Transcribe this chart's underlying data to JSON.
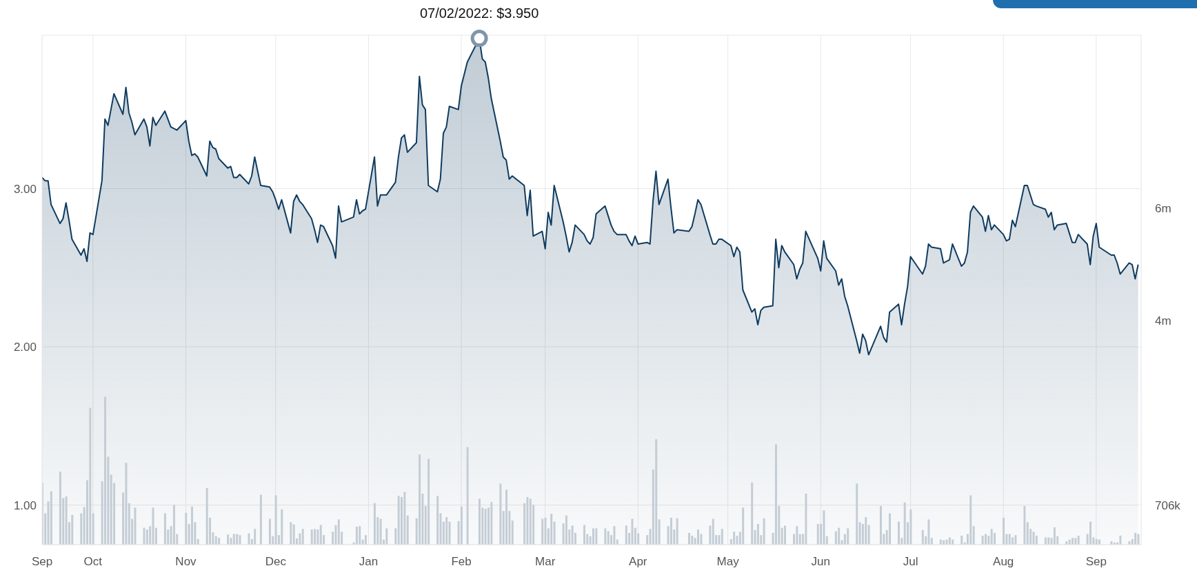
{
  "chart_data": {
    "type": "area",
    "x": [
      "2021-09-14",
      "2021-09-15",
      "2021-09-16",
      "2021-09-17",
      "2021-09-20",
      "2021-09-21",
      "2021-09-22",
      "2021-09-23",
      "2021-09-24",
      "2021-09-27",
      "2021-09-28",
      "2021-09-29",
      "2021-09-30",
      "2021-10-01",
      "2021-10-04",
      "2021-10-05",
      "2021-10-06",
      "2021-10-07",
      "2021-10-08",
      "2021-10-11",
      "2021-10-12",
      "2021-10-13",
      "2021-10-14",
      "2021-10-15",
      "2021-10-18",
      "2021-10-19",
      "2021-10-20",
      "2021-10-21",
      "2021-10-22",
      "2021-10-25",
      "2021-10-26",
      "2021-10-27",
      "2021-10-28",
      "2021-10-29",
      "2021-11-01",
      "2021-11-02",
      "2021-11-03",
      "2021-11-04",
      "2021-11-05",
      "2021-11-08",
      "2021-11-09",
      "2021-11-10",
      "2021-11-11",
      "2021-11-12",
      "2021-11-15",
      "2021-11-16",
      "2021-11-17",
      "2021-11-18",
      "2021-11-19",
      "2021-11-22",
      "2021-11-23",
      "2021-11-24",
      "2021-11-26",
      "2021-11-29",
      "2021-11-30",
      "2021-12-01",
      "2021-12-02",
      "2021-12-03",
      "2021-12-06",
      "2021-12-07",
      "2021-12-08",
      "2021-12-09",
      "2021-12-10",
      "2021-12-13",
      "2021-12-14",
      "2021-12-15",
      "2021-12-16",
      "2021-12-17",
      "2021-12-20",
      "2021-12-21",
      "2021-12-22",
      "2021-12-23",
      "2021-12-27",
      "2021-12-28",
      "2021-12-29",
      "2021-12-30",
      "2021-12-31",
      "2022-01-03",
      "2022-01-04",
      "2022-01-05",
      "2022-01-06",
      "2022-01-07",
      "2022-01-10",
      "2022-01-11",
      "2022-01-12",
      "2022-01-13",
      "2022-01-14",
      "2022-01-17",
      "2022-01-18",
      "2022-01-19",
      "2022-01-20",
      "2022-01-21",
      "2022-01-24",
      "2022-01-25",
      "2022-01-26",
      "2022-01-27",
      "2022-01-28",
      "2022-01-31",
      "2022-02-01",
      "2022-02-03",
      "2022-02-07",
      "2022-02-08",
      "2022-02-09",
      "2022-02-10",
      "2022-02-11",
      "2022-02-14",
      "2022-02-15",
      "2022-02-16",
      "2022-02-17",
      "2022-02-18",
      "2022-02-22",
      "2022-02-23",
      "2022-02-24",
      "2022-02-25",
      "2022-02-28",
      "2022-03-01",
      "2022-03-02",
      "2022-03-03",
      "2022-03-04",
      "2022-03-07",
      "2022-03-08",
      "2022-03-09",
      "2022-03-10",
      "2022-03-11",
      "2022-03-14",
      "2022-03-15",
      "2022-03-16",
      "2022-03-17",
      "2022-03-18",
      "2022-03-21",
      "2022-03-22",
      "2022-03-23",
      "2022-03-24",
      "2022-03-25",
      "2022-03-28",
      "2022-03-29",
      "2022-03-30",
      "2022-03-31",
      "2022-04-01",
      "2022-04-04",
      "2022-04-05",
      "2022-04-06",
      "2022-04-07",
      "2022-04-08",
      "2022-04-11",
      "2022-04-12",
      "2022-04-13",
      "2022-04-14",
      "2022-04-18",
      "2022-04-19",
      "2022-04-20",
      "2022-04-21",
      "2022-04-22",
      "2022-04-25",
      "2022-04-26",
      "2022-04-27",
      "2022-04-28",
      "2022-04-29",
      "2022-05-02",
      "2022-05-03",
      "2022-05-04",
      "2022-05-05",
      "2022-05-06",
      "2022-05-09",
      "2022-05-10",
      "2022-05-11",
      "2022-05-12",
      "2022-05-13",
      "2022-05-16",
      "2022-05-17",
      "2022-05-18",
      "2022-05-19",
      "2022-05-20",
      "2022-05-23",
      "2022-05-24",
      "2022-05-25",
      "2022-05-26",
      "2022-05-27",
      "2022-05-31",
      "2022-06-01",
      "2022-06-02",
      "2022-06-03",
      "2022-06-06",
      "2022-06-07",
      "2022-06-08",
      "2022-06-09",
      "2022-06-10",
      "2022-06-13",
      "2022-06-14",
      "2022-06-15",
      "2022-06-16",
      "2022-06-17",
      "2022-06-21",
      "2022-06-22",
      "2022-06-23",
      "2022-06-24",
      "2022-06-27",
      "2022-06-28",
      "2022-06-29",
      "2022-06-30",
      "2022-07-01",
      "2022-07-05",
      "2022-07-06",
      "2022-07-07",
      "2022-07-08",
      "2022-07-11",
      "2022-07-12",
      "2022-07-13",
      "2022-07-14",
      "2022-07-15",
      "2022-07-18",
      "2022-07-19",
      "2022-07-20",
      "2022-07-21",
      "2022-07-22",
      "2022-07-25",
      "2022-07-26",
      "2022-07-27",
      "2022-07-28",
      "2022-07-29",
      "2022-08-01",
      "2022-08-02",
      "2022-08-03",
      "2022-08-04",
      "2022-08-05",
      "2022-08-08",
      "2022-08-09",
      "2022-08-10",
      "2022-08-11",
      "2022-08-12",
      "2022-08-15",
      "2022-08-16",
      "2022-08-17",
      "2022-08-18",
      "2022-08-19",
      "2022-08-22",
      "2022-08-23",
      "2022-08-24",
      "2022-08-25",
      "2022-08-26",
      "2022-08-29",
      "2022-08-30",
      "2022-08-31",
      "2022-09-01",
      "2022-09-02",
      "2022-09-06",
      "2022-09-07",
      "2022-09-08",
      "2022-09-09",
      "2022-09-12",
      "2022-09-13",
      "2022-09-14",
      "2022-09-15"
    ],
    "series": [
      {
        "color": "#0f3b5f",
        "values": [
          3.07,
          3.05,
          3.05,
          2.9,
          2.78,
          2.81,
          2.91,
          2.8,
          2.68,
          2.58,
          2.62,
          2.54,
          2.72,
          2.71,
          3.05,
          3.44,
          3.4,
          3.5,
          3.6,
          3.47,
          3.64,
          3.48,
          3.42,
          3.34,
          3.44,
          3.39,
          3.27,
          3.45,
          3.4,
          3.49,
          3.44,
          3.39,
          3.38,
          3.37,
          3.43,
          3.3,
          3.21,
          3.22,
          3.2,
          3.08,
          3.3,
          3.26,
          3.25,
          3.19,
          3.13,
          3.14,
          3.07,
          3.07,
          3.09,
          3.03,
          3.08,
          3.2,
          3.02,
          3.01,
          2.98,
          2.93,
          2.87,
          2.93,
          2.72,
          2.92,
          2.96,
          2.92,
          2.9,
          2.81,
          2.74,
          2.66,
          2.77,
          2.76,
          2.64,
          2.56,
          2.89,
          2.79,
          2.82,
          2.93,
          2.84,
          2.86,
          2.87,
          3.2,
          2.89,
          2.96,
          2.96,
          2.96,
          3.04,
          3.2,
          3.32,
          3.34,
          3.23,
          3.29,
          3.71,
          3.53,
          3.5,
          3.02,
          2.98,
          3.06,
          3.35,
          3.39,
          3.52,
          3.5,
          3.65,
          3.8,
          3.95,
          3.82,
          3.8,
          3.7,
          3.57,
          3.3,
          3.2,
          3.18,
          3.06,
          3.08,
          3.02,
          2.83,
          2.99,
          2.7,
          2.73,
          2.62,
          2.85,
          2.77,
          3.02,
          2.79,
          2.7,
          2.6,
          2.66,
          2.77,
          2.71,
          2.67,
          2.65,
          2.69,
          2.84,
          2.89,
          2.83,
          2.77,
          2.73,
          2.71,
          2.71,
          2.67,
          2.64,
          2.7,
          2.65,
          2.66,
          2.65,
          2.92,
          3.11,
          2.9,
          3.06,
          2.88,
          2.72,
          2.74,
          2.73,
          2.76,
          2.84,
          2.93,
          2.9,
          2.71,
          2.65,
          2.65,
          2.68,
          2.68,
          2.64,
          2.57,
          2.63,
          2.6,
          2.36,
          2.22,
          2.24,
          2.14,
          2.23,
          2.25,
          2.26,
          2.68,
          2.5,
          2.64,
          2.6,
          2.52,
          2.43,
          2.49,
          2.53,
          2.73,
          2.56,
          2.48,
          2.67,
          2.56,
          2.48,
          2.39,
          2.43,
          2.32,
          2.26,
          2.04,
          1.96,
          2.08,
          2.04,
          1.95,
          2.13,
          2.06,
          2.03,
          2.22,
          2.27,
          2.14,
          2.27,
          2.38,
          2.57,
          2.46,
          2.51,
          2.65,
          2.63,
          2.62,
          2.53,
          2.54,
          2.55,
          2.65,
          2.51,
          2.53,
          2.6,
          2.85,
          2.89,
          2.82,
          2.73,
          2.83,
          2.74,
          2.77,
          2.71,
          2.67,
          2.68,
          2.8,
          2.76,
          3.02,
          3.02,
          2.96,
          2.9,
          2.89,
          2.87,
          2.82,
          2.85,
          2.74,
          2.77,
          2.78,
          2.72,
          2.66,
          2.66,
          2.71,
          2.65,
          2.52,
          2.7,
          2.78,
          2.63,
          2.58,
          2.58,
          2.53,
          2.46,
          2.53,
          2.52,
          2.43,
          2.52
        ]
      },
      {
        "type": "bar",
        "axis": "y2",
        "color": "#c4cdd5",
        "values": [
          1100000,
          560000,
          770000,
          950000,
          1300000,
          830000,
          860000,
          400000,
          530000,
          560000,
          670000,
          1150000,
          2440000,
          560000,
          1130000,
          2640000,
          1570000,
          1250000,
          1100000,
          930000,
          1460000,
          740000,
          460000,
          660000,
          300000,
          270000,
          330000,
          660000,
          300000,
          560000,
          270000,
          330000,
          710000,
          190000,
          570000,
          370000,
          680000,
          400000,
          100000,
          1010000,
          480000,
          220000,
          150000,
          120000,
          180000,
          120000,
          190000,
          190000,
          170000,
          200000,
          100000,
          280000,
          890000,
          460000,
          150000,
          880000,
          170000,
          630000,
          400000,
          360000,
          110000,
          200000,
          280000,
          270000,
          280000,
          270000,
          350000,
          170000,
          230000,
          350000,
          450000,
          230000,
          40000,
          320000,
          330000,
          90000,
          170000,
          740000,
          490000,
          460000,
          90000,
          290000,
          290000,
          870000,
          850000,
          940000,
          520000,
          470000,
          1610000,
          910000,
          690000,
          1530000,
          870000,
          560000,
          410000,
          490000,
          410000,
          420000,
          680000,
          1740000,
          820000,
          660000,
          640000,
          660000,
          760000,
          1090000,
          600000,
          980000,
          600000,
          430000,
          740000,
          850000,
          820000,
          710000,
          460000,
          480000,
          290000,
          550000,
          410000,
          380000,
          520000,
          270000,
          340000,
          210000,
          350000,
          190000,
          150000,
          290000,
          290000,
          290000,
          240000,
          170000,
          330000,
          90000,
          340000,
          210000,
          460000,
          300000,
          200000,
          170000,
          280000,
          1340000,
          1880000,
          450000,
          330000,
          480000,
          270000,
          470000,
          210000,
          160000,
          120000,
          270000,
          190000,
          340000,
          460000,
          170000,
          170000,
          280000,
          100000,
          230000,
          160000,
          230000,
          660000,
          1110000,
          260000,
          370000,
          170000,
          470000,
          210000,
          1790000,
          690000,
          300000,
          340000,
          190000,
          330000,
          190000,
          190000,
          910000,
          370000,
          370000,
          610000,
          150000,
          240000,
          300000,
          80000,
          190000,
          290000,
          1090000,
          400000,
          370000,
          490000,
          350000,
          690000,
          190000,
          260000,
          560000,
          410000,
          120000,
          750000,
          400000,
          630000,
          260000,
          150000,
          450000,
          120000,
          90000,
          80000,
          90000,
          130000,
          90000,
          160000,
          40000,
          190000,
          880000,
          330000,
          160000,
          190000,
          160000,
          280000,
          210000,
          480000,
          190000,
          190000,
          130000,
          170000,
          690000,
          400000,
          280000,
          230000,
          160000,
          130000,
          130000,
          120000,
          310000,
          150000,
          60000,
          90000,
          120000,
          120000,
          160000,
          190000,
          410000,
          130000,
          100000,
          90000,
          60000,
          40000,
          40000,
          160000,
          60000,
          100000,
          210000,
          190000
        ]
      }
    ],
    "xlim": [
      "2021-09-14",
      "2022-09-16"
    ],
    "xticks": [
      {
        "value": "2021-09-14",
        "label": "Sep"
      },
      {
        "value": "2021-10-01",
        "label": "Oct"
      },
      {
        "value": "2021-11-01",
        "label": "Nov"
      },
      {
        "value": "2021-12-01",
        "label": "Dec"
      },
      {
        "value": "2022-01-01",
        "label": "Jan"
      },
      {
        "value": "2022-02-01",
        "label": "Feb"
      },
      {
        "value": "2022-03-01",
        "label": "Mar"
      },
      {
        "value": "2022-04-01",
        "label": "Apr"
      },
      {
        "value": "2022-05-01",
        "label": "May"
      },
      {
        "value": "2022-06-01",
        "label": "Jun"
      },
      {
        "value": "2022-07-01",
        "label": "Jul"
      },
      {
        "value": "2022-08-01",
        "label": "Aug"
      },
      {
        "value": "2022-09-01",
        "label": "Sep"
      }
    ],
    "ylim": [
      0.75,
      3.97
    ],
    "yticks": [
      {
        "value": 1,
        "label": "1.00"
      },
      {
        "value": 2,
        "label": "2.00"
      },
      {
        "value": 3,
        "label": "3.00"
      }
    ],
    "y2lim": [
      0,
      9090000
    ],
    "y2ticks": [
      {
        "value": 706000,
        "label": "706k"
      },
      {
        "value": 4000000,
        "label": "4m"
      },
      {
        "value": 6000000,
        "label": "6m"
      }
    ],
    "grid": true,
    "annotations": [
      {
        "text": "07/02/2022: $3.950",
        "x": "2022-02-07",
        "y": 3.95
      }
    ]
  }
}
